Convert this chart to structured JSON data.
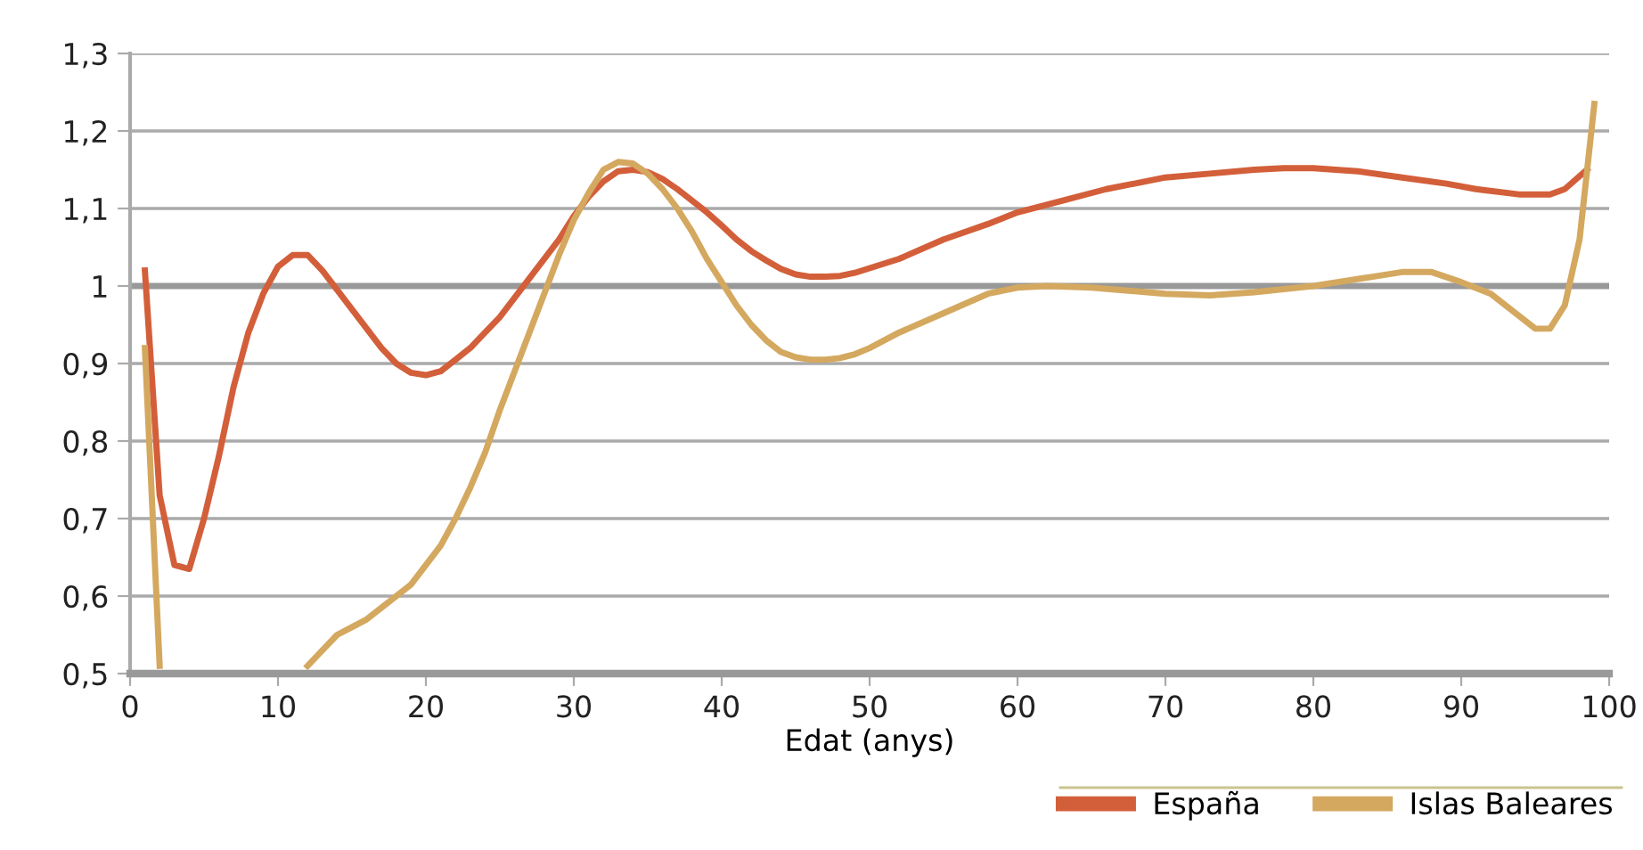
{
  "chart_data": {
    "type": "line",
    "xlabel": "Edat (anys)",
    "xlim": [
      0,
      100
    ],
    "xticks": [
      0,
      10,
      20,
      30,
      40,
      50,
      60,
      70,
      80,
      90,
      100
    ],
    "ylim": [
      0.5,
      1.3
    ],
    "yticks": [
      {
        "value": 0.5,
        "label": "0,5"
      },
      {
        "value": 0.6,
        "label": "0,6"
      },
      {
        "value": 0.7,
        "label": "0,7"
      },
      {
        "value": 0.8,
        "label": "0,8"
      },
      {
        "value": 0.9,
        "label": "0,9"
      },
      {
        "value": 1,
        "label": "1"
      },
      {
        "value": 1.1,
        "label": "1,1"
      },
      {
        "value": 1.2,
        "label": "1,2"
      },
      {
        "value": 1.3,
        "label": "1,3"
      }
    ],
    "grid": "y",
    "legend": "bottom right",
    "marker": "none",
    "line_style": "solid",
    "ref_lines": [
      {
        "axis": "y",
        "value": 1,
        "color": "#999999"
      }
    ],
    "series": [
      {
        "name": "España",
        "color": "#d35f3a",
        "x": [
          1,
          2,
          3,
          4,
          5,
          6,
          7,
          8,
          9,
          10,
          11,
          12,
          13,
          14,
          15,
          16,
          17,
          18,
          19,
          20,
          21,
          22,
          23,
          24,
          25,
          26,
          27,
          28,
          29,
          30,
          31,
          32,
          33,
          34,
          35,
          36,
          37,
          38,
          39,
          40,
          41,
          42,
          43,
          44,
          45,
          46,
          47,
          48,
          49,
          50,
          52,
          55,
          58,
          60,
          63,
          66,
          70,
          73,
          76,
          78,
          80,
          83,
          86,
          89,
          91,
          94,
          96,
          97,
          98.5
        ],
        "values": [
          1.02,
          0.73,
          0.64,
          0.635,
          0.7,
          0.78,
          0.87,
          0.94,
          0.99,
          1.025,
          1.04,
          1.04,
          1.02,
          0.995,
          0.97,
          0.945,
          0.92,
          0.9,
          0.888,
          0.885,
          0.89,
          0.905,
          0.92,
          0.94,
          0.96,
          0.985,
          1.01,
          1.035,
          1.06,
          1.09,
          1.115,
          1.135,
          1.148,
          1.15,
          1.147,
          1.138,
          1.125,
          1.11,
          1.095,
          1.078,
          1.06,
          1.045,
          1.033,
          1.022,
          1.015,
          1.012,
          1.012,
          1.013,
          1.017,
          1.023,
          1.035,
          1.06,
          1.08,
          1.095,
          1.11,
          1.125,
          1.14,
          1.145,
          1.15,
          1.152,
          1.152,
          1.148,
          1.14,
          1.132,
          1.125,
          1.118,
          1.118,
          1.125,
          1.15
        ]
      },
      {
        "name": "Islas Baleares",
        "color": "#d4a85f",
        "x": [
          1,
          2,
          3,
          11,
          12,
          13,
          14,
          15,
          16,
          17,
          18,
          19,
          20,
          21,
          22,
          23,
          24,
          25,
          26,
          27,
          28,
          29,
          30,
          31,
          32,
          33,
          34,
          35,
          36,
          37,
          38,
          39,
          40,
          41,
          42,
          43,
          44,
          45,
          46,
          47,
          48,
          49,
          50,
          52,
          55,
          58,
          60,
          62,
          65,
          70,
          73,
          76,
          80,
          84,
          86,
          88,
          90,
          92,
          94,
          95,
          96,
          97,
          98,
          99
        ],
        "values": [
          0.92,
          0.51,
          null,
          null,
          0.51,
          0.53,
          0.55,
          0.56,
          0.57,
          0.585,
          0.6,
          0.615,
          0.64,
          0.665,
          0.7,
          0.74,
          0.785,
          0.84,
          0.89,
          0.94,
          0.99,
          1.04,
          1.085,
          1.12,
          1.15,
          1.16,
          1.158,
          1.145,
          1.125,
          1.1,
          1.07,
          1.035,
          1.005,
          0.975,
          0.95,
          0.93,
          0.915,
          0.908,
          0.905,
          0.905,
          0.907,
          0.912,
          0.92,
          0.94,
          0.965,
          0.99,
          0.998,
          1.0,
          0.998,
          0.99,
          0.988,
          0.992,
          1.0,
          1.012,
          1.018,
          1.018,
          1.005,
          0.99,
          0.96,
          0.945,
          0.945,
          0.975,
          1.06,
          1.235
        ]
      }
    ]
  }
}
